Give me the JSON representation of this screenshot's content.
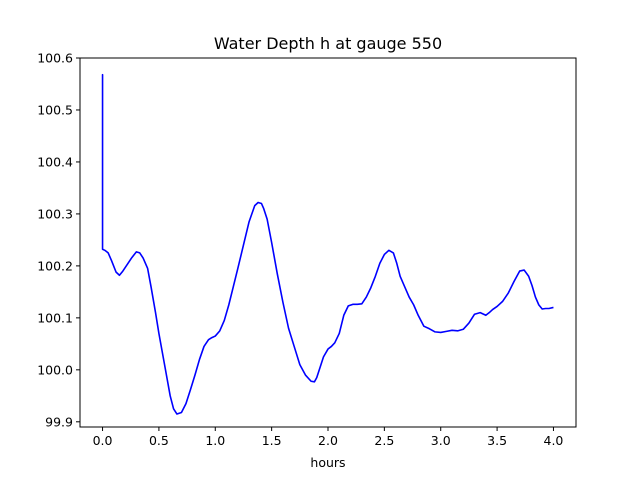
{
  "chart_data": {
    "type": "line",
    "title": "Water Depth h at gauge 550",
    "xlabel": "hours",
    "ylabel": "",
    "xlim": [
      -0.2,
      4.2
    ],
    "ylim": [
      99.89,
      100.6
    ],
    "xticks": [
      0.0,
      0.5,
      1.0,
      1.5,
      2.0,
      2.5,
      3.0,
      3.5,
      4.0
    ],
    "xtick_labels": [
      "0.0",
      "0.5",
      "1.0",
      "1.5",
      "2.0",
      "2.5",
      "3.0",
      "3.5",
      "4.0"
    ],
    "yticks": [
      99.9,
      100.0,
      100.1,
      100.2,
      100.3,
      100.4,
      100.5,
      100.6
    ],
    "ytick_labels": [
      "99.9",
      "100.0",
      "100.1",
      "100.2",
      "100.3",
      "100.4",
      "100.5",
      "100.6"
    ],
    "grid": false,
    "legend": "none",
    "series": [
      {
        "color": "#0000ff",
        "x": [
          0.0,
          0.0,
          0.0,
          0.02,
          0.05,
          0.08,
          0.12,
          0.15,
          0.18,
          0.22,
          0.26,
          0.3,
          0.33,
          0.36,
          0.4,
          0.43,
          0.47,
          0.5,
          0.55,
          0.6,
          0.63,
          0.66,
          0.7,
          0.74,
          0.78,
          0.82,
          0.86,
          0.9,
          0.94,
          0.97,
          1.0,
          1.04,
          1.08,
          1.12,
          1.16,
          1.2,
          1.25,
          1.3,
          1.35,
          1.38,
          1.41,
          1.43,
          1.46,
          1.5,
          1.55,
          1.6,
          1.65,
          1.7,
          1.75,
          1.8,
          1.85,
          1.88,
          1.9,
          1.93,
          1.96,
          2.0,
          2.03,
          2.06,
          2.1,
          2.14,
          2.18,
          2.22,
          2.26,
          2.3,
          2.34,
          2.38,
          2.42,
          2.46,
          2.5,
          2.54,
          2.58,
          2.61,
          2.64,
          2.68,
          2.72,
          2.76,
          2.8,
          2.85,
          2.9,
          2.95,
          3.0,
          3.05,
          3.1,
          3.15,
          3.2,
          3.25,
          3.3,
          3.35,
          3.4,
          3.43,
          3.46,
          3.5,
          3.55,
          3.6,
          3.65,
          3.7,
          3.74,
          3.78,
          3.81,
          3.84,
          3.87,
          3.9,
          3.93,
          3.96,
          4.0
        ],
        "y": [
          100.232,
          100.568,
          100.232,
          100.23,
          100.225,
          100.21,
          100.188,
          100.182,
          100.19,
          100.203,
          100.216,
          100.227,
          100.225,
          100.215,
          100.195,
          100.16,
          100.11,
          100.07,
          100.01,
          99.95,
          99.925,
          99.915,
          99.918,
          99.935,
          99.962,
          99.99,
          100.02,
          100.045,
          100.058,
          100.062,
          100.065,
          100.075,
          100.095,
          100.125,
          100.16,
          100.195,
          100.24,
          100.285,
          100.316,
          100.322,
          100.32,
          100.31,
          100.29,
          100.245,
          100.185,
          100.13,
          100.08,
          100.045,
          100.01,
          99.99,
          99.978,
          99.977,
          99.985,
          100.005,
          100.025,
          100.04,
          100.045,
          100.052,
          100.07,
          100.105,
          100.123,
          100.126,
          100.126,
          100.127,
          100.14,
          100.158,
          100.18,
          100.205,
          100.222,
          100.23,
          100.225,
          100.205,
          100.18,
          100.16,
          100.14,
          100.125,
          100.105,
          100.084,
          100.079,
          100.073,
          100.072,
          100.074,
          100.076,
          100.075,
          100.078,
          100.09,
          100.107,
          100.11,
          100.105,
          100.11,
          100.116,
          100.122,
          100.132,
          100.148,
          100.17,
          100.19,
          100.192,
          100.18,
          100.162,
          100.14,
          100.125,
          100.117,
          100.118,
          100.118,
          100.12
        ]
      }
    ]
  }
}
